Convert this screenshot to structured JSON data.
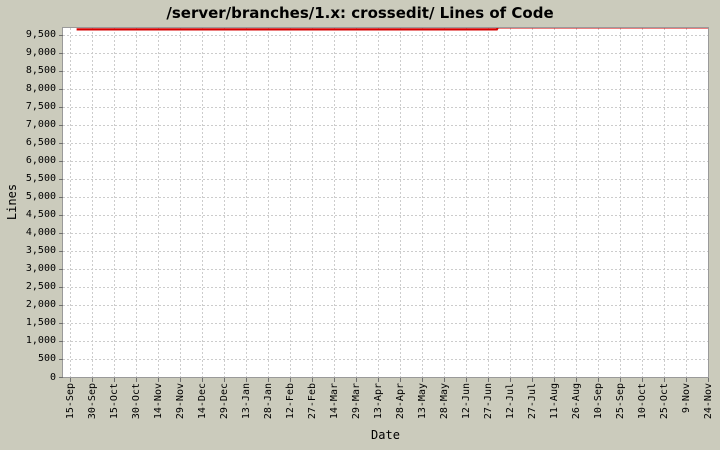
{
  "colors": {
    "background": "#cbcbbc",
    "plot_background": "#ffffff",
    "gridline": "#cccccc",
    "plot_border": "#9a9a9a",
    "tick": "#6e6e6e",
    "text": "#000000",
    "series": "#d40000"
  },
  "chart_data": {
    "type": "line",
    "title": "/server/branches/1.x: crossedit/ Lines of Code",
    "xlabel": "Date",
    "ylabel": "Lines",
    "ylim": [
      0,
      9694
    ],
    "grid": true,
    "legend": "none",
    "yticks": [
      0,
      500,
      1000,
      1500,
      2000,
      2500,
      3000,
      3500,
      4000,
      4500,
      5000,
      5500,
      6000,
      6500,
      7000,
      7500,
      8000,
      8500,
      9000,
      9500
    ],
    "xticklabels": [
      "15-Sep",
      "30-Sep",
      "15-Oct",
      "30-Oct",
      "14-Nov",
      "29-Nov",
      "14-Dec",
      "29-Dec",
      "13-Jan",
      "28-Jan",
      "12-Feb",
      "27-Feb",
      "14-Mar",
      "29-Mar",
      "13-Apr",
      "28-Apr",
      "13-May",
      "28-May",
      "12-Jun",
      "27-Jun",
      "12-Jul",
      "27-Jul",
      "11-Aug",
      "26-Aug",
      "10-Sep",
      "25-Sep",
      "10-Oct",
      "25-Oct",
      "9-Nov",
      "24-Nov"
    ],
    "series": [
      {
        "name": "Lines of Code",
        "color": "#d40000",
        "comment": "flat at ~9655 lines from mid-Sep until early Jul, then steps up to ~9710 (clipped at top of plot) through 24-Nov",
        "points": [
          [
            0.3,
            9655
          ],
          [
            19.4,
            9655
          ],
          [
            19.45,
            9710
          ],
          [
            29,
            9710
          ]
        ]
      }
    ]
  }
}
